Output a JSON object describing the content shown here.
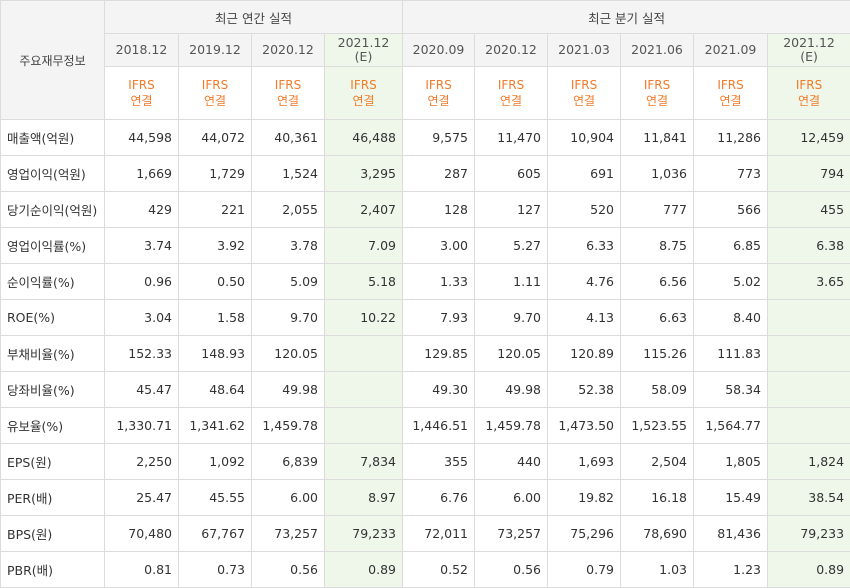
{
  "corner_label": "주요재무정보",
  "groups": {
    "annual": "최근 연간 실적",
    "quarter": "최근 분기 실적"
  },
  "periods": [
    {
      "label": "2018.12",
      "sub": "",
      "estimate": false
    },
    {
      "label": "2019.12",
      "sub": "",
      "estimate": false
    },
    {
      "label": "2020.12",
      "sub": "",
      "estimate": false
    },
    {
      "label": "2021.12",
      "sub": "(E)",
      "estimate": true
    },
    {
      "label": "2020.09",
      "sub": "",
      "estimate": false
    },
    {
      "label": "2020.12",
      "sub": "",
      "estimate": false
    },
    {
      "label": "2021.03",
      "sub": "",
      "estimate": false
    },
    {
      "label": "2021.06",
      "sub": "",
      "estimate": false
    },
    {
      "label": "2021.09",
      "sub": "",
      "estimate": false
    },
    {
      "label": "2021.12",
      "sub": "(E)",
      "estimate": true
    }
  ],
  "ifrs": {
    "line1": "IFRS",
    "line2": "연결"
  },
  "rows": [
    {
      "label": "매출액(억원)",
      "values": [
        "44,598",
        "44,072",
        "40,361",
        "46,488",
        "9,575",
        "11,470",
        "10,904",
        "11,841",
        "11,286",
        "12,459"
      ]
    },
    {
      "label": "영업이익(억원)",
      "values": [
        "1,669",
        "1,729",
        "1,524",
        "3,295",
        "287",
        "605",
        "691",
        "1,036",
        "773",
        "794"
      ]
    },
    {
      "label": "당기순이익(억원)",
      "values": [
        "429",
        "221",
        "2,055",
        "2,407",
        "128",
        "127",
        "520",
        "777",
        "566",
        "455"
      ]
    },
    {
      "label": "영업이익률(%)",
      "values": [
        "3.74",
        "3.92",
        "3.78",
        "7.09",
        "3.00",
        "5.27",
        "6.33",
        "8.75",
        "6.85",
        "6.38"
      ]
    },
    {
      "label": "순이익률(%)",
      "values": [
        "0.96",
        "0.50",
        "5.09",
        "5.18",
        "1.33",
        "1.11",
        "4.76",
        "6.56",
        "5.02",
        "3.65"
      ]
    },
    {
      "label": "ROE(%)",
      "values": [
        "3.04",
        "1.58",
        "9.70",
        "10.22",
        "7.93",
        "9.70",
        "4.13",
        "6.63",
        "8.40",
        ""
      ]
    },
    {
      "label": "부채비율(%)",
      "values": [
        "152.33",
        "148.93",
        "120.05",
        "",
        "129.85",
        "120.05",
        "120.89",
        "115.26",
        "111.83",
        ""
      ]
    },
    {
      "label": "당좌비율(%)",
      "values": [
        "45.47",
        "48.64",
        "49.98",
        "",
        "49.30",
        "49.98",
        "52.38",
        "58.09",
        "58.34",
        ""
      ]
    },
    {
      "label": "유보율(%)",
      "values": [
        "1,330.71",
        "1,341.62",
        "1,459.78",
        "",
        "1,446.51",
        "1,459.78",
        "1,473.50",
        "1,523.55",
        "1,564.77",
        ""
      ]
    },
    {
      "label": "EPS(원)",
      "values": [
        "2,250",
        "1,092",
        "6,839",
        "7,834",
        "355",
        "440",
        "1,693",
        "2,504",
        "1,805",
        "1,824"
      ]
    },
    {
      "label": "PER(배)",
      "values": [
        "25.47",
        "45.55",
        "6.00",
        "8.97",
        "6.76",
        "6.00",
        "19.82",
        "16.18",
        "15.49",
        "38.54"
      ]
    },
    {
      "label": "BPS(원)",
      "values": [
        "70,480",
        "67,767",
        "73,257",
        "79,233",
        "72,011",
        "73,257",
        "75,296",
        "78,690",
        "81,436",
        "79,233"
      ]
    },
    {
      "label": "PBR(배)",
      "values": [
        "0.81",
        "0.73",
        "0.56",
        "0.89",
        "0.52",
        "0.56",
        "0.79",
        "1.03",
        "1.23",
        "0.89"
      ]
    }
  ]
}
